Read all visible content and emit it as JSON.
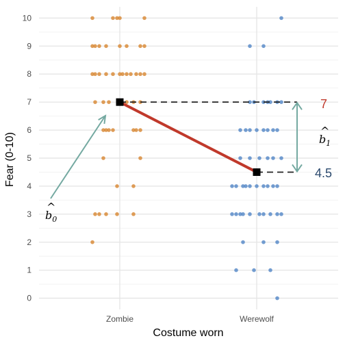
{
  "chart_data": {
    "type": "scatter",
    "xlabel": "Costume worn",
    "ylabel": "Fear (0-10)",
    "categories": [
      "Zombie",
      "Werewolf"
    ],
    "yticks": [
      0,
      1,
      2,
      3,
      4,
      5,
      6,
      7,
      8,
      9,
      10
    ],
    "ylim": [
      -0.4,
      10.4
    ],
    "grid": true,
    "colors": {
      "Zombie": "#d98c3b",
      "Werewolf": "#5b8cc9",
      "line": "#c0392b",
      "arrow": "#74a9a1",
      "mean_marker": "#000000"
    },
    "points": {
      "Zombie": [
        {
          "y": 10,
          "offsets": [
            -0.2,
            -0.05,
            -0.02,
            0.0,
            0.18
          ]
        },
        {
          "y": 9,
          "offsets": [
            -0.2,
            -0.18,
            -0.15,
            -0.1,
            0.0,
            0.05,
            0.15,
            0.18
          ]
        },
        {
          "y": 8,
          "offsets": [
            -0.2,
            -0.18,
            -0.15,
            -0.1,
            -0.05,
            0.0,
            0.02,
            0.05,
            0.08,
            0.12,
            0.15,
            0.18
          ]
        },
        {
          "y": 7,
          "offsets": [
            -0.18,
            -0.12,
            -0.08,
            0.0,
            0.05,
            0.1,
            0.15
          ]
        },
        {
          "y": 6,
          "offsets": [
            -0.12,
            -0.1,
            -0.08,
            -0.05,
            0.1,
            0.12,
            0.15
          ]
        },
        {
          "y": 5,
          "offsets": [
            -0.12,
            0.15
          ]
        },
        {
          "y": 4,
          "offsets": [
            -0.02,
            0.1
          ]
        },
        {
          "y": 3,
          "offsets": [
            -0.18,
            -0.15,
            -0.1,
            -0.02,
            0.1
          ]
        },
        {
          "y": 2,
          "offsets": [
            -0.2
          ]
        }
      ],
      "Werewolf": [
        {
          "y": 10,
          "offsets": [
            0.18
          ]
        },
        {
          "y": 9,
          "offsets": [
            -0.05,
            0.05
          ]
        },
        {
          "y": 7,
          "offsets": [
            -0.05,
            -0.02,
            0.05,
            0.08,
            0.1,
            0.15,
            0.18
          ]
        },
        {
          "y": 6,
          "offsets": [
            -0.12,
            -0.08,
            -0.05,
            0.0,
            0.05,
            0.08,
            0.12,
            0.15
          ]
        },
        {
          "y": 5,
          "offsets": [
            -0.12,
            -0.05,
            0.02,
            0.08,
            0.12,
            0.18
          ]
        },
        {
          "y": 4,
          "offsets": [
            -0.18,
            -0.15,
            -0.1,
            -0.08,
            -0.05,
            0.0,
            0.05,
            0.08,
            0.12,
            0.15
          ]
        },
        {
          "y": 3,
          "offsets": [
            -0.18,
            -0.15,
            -0.12,
            -0.1,
            -0.05,
            0.02,
            0.05,
            0.1,
            0.15,
            0.18
          ]
        },
        {
          "y": 2,
          "offsets": [
            -0.1,
            0.05,
            0.15
          ]
        },
        {
          "y": 1,
          "offsets": [
            -0.15,
            -0.02,
            0.1
          ]
        },
        {
          "y": 0,
          "offsets": [
            0.15
          ]
        }
      ]
    },
    "means": [
      {
        "group": "Zombie",
        "value": 7
      },
      {
        "group": "Werewolf",
        "value": 4.5
      }
    ],
    "annotations": {
      "b0_label": "b",
      "b0_sub": "0",
      "b1_label": "b",
      "b1_sub": "1",
      "value_high": "7",
      "value_high_color": "#c0392b",
      "value_low": "4.5",
      "value_low_color": "#2c4a6e"
    }
  }
}
